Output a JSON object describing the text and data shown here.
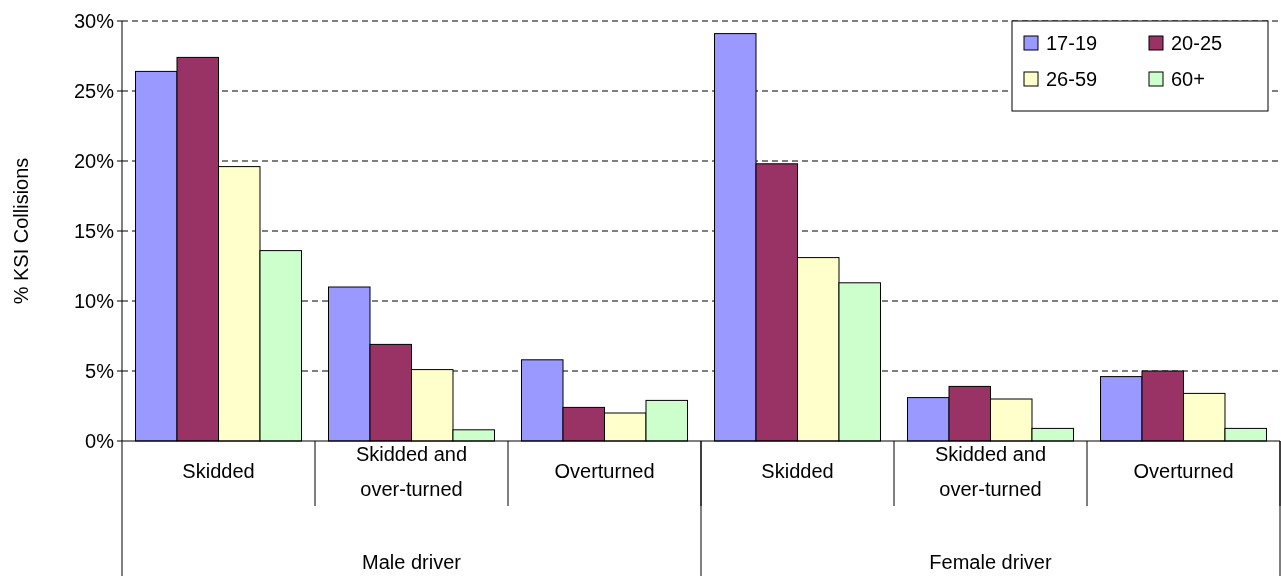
{
  "chart_data": {
    "type": "bar",
    "ylabel": "% KSI Collisions",
    "categories": [
      "Skidded",
      "Skidded and over-turned",
      "Overturned",
      "Skidded",
      "Skidded and over-turned",
      "Overturned"
    ],
    "annotations": [
      "Male driver",
      "Female driver"
    ],
    "series": [
      {
        "name": "17-19",
        "color": "#9999ff",
        "values": [
          26.4,
          11.0,
          5.8,
          29.1,
          3.1,
          4.6
        ]
      },
      {
        "name": "20-25",
        "color": "#993366",
        "values": [
          27.4,
          6.9,
          2.4,
          19.8,
          3.9,
          5.0
        ]
      },
      {
        "name": "26-59",
        "color": "#ffffcc",
        "values": [
          19.6,
          5.1,
          2.0,
          13.1,
          3.0,
          3.4
        ]
      },
      {
        "name": "60+",
        "color": "#ccffcc",
        "values": [
          13.6,
          0.8,
          2.9,
          11.3,
          0.9,
          0.9
        ]
      }
    ],
    "ylim": [
      0,
      30
    ],
    "yticks": [
      {
        "value": 0,
        "label": "0%"
      },
      {
        "value": 5,
        "label": "5%"
      },
      {
        "value": 10,
        "label": "10%"
      },
      {
        "value": 15,
        "label": "15%"
      },
      {
        "value": 20,
        "label": "20%"
      },
      {
        "value": 25,
        "label": "25%"
      },
      {
        "value": 30,
        "label": "30%"
      }
    ],
    "grid": "y",
    "legend": "top right"
  }
}
